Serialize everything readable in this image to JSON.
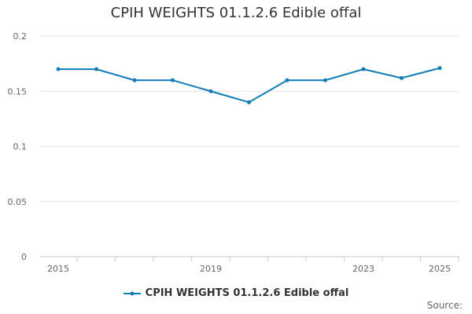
{
  "chart_data": {
    "type": "line",
    "title": "CPIH WEIGHTS 01.1.2.6 Edible offal",
    "xlabel": "",
    "ylabel": "",
    "x": [
      2015,
      2016,
      2017,
      2018,
      2019,
      2020,
      2021,
      2022,
      2023,
      2024,
      2025
    ],
    "x_tick_labels": [
      "2015",
      "2019",
      "2023",
      "2025"
    ],
    "ylim": [
      0,
      0.2
    ],
    "y_tick_labels": [
      "0",
      "0.05",
      "0.1",
      "0.15",
      "0.2"
    ],
    "grid": true,
    "legend_position": "bottom-center",
    "series": [
      {
        "name": "CPIH WEIGHTS 01.1.2.6 Edible offal",
        "color": "#0f7bb8",
        "values": [
          0.17,
          0.17,
          0.16,
          0.16,
          0.15,
          0.14,
          0.16,
          0.16,
          0.17,
          0.162,
          0.171
        ]
      }
    ]
  },
  "source_label": "Source:"
}
